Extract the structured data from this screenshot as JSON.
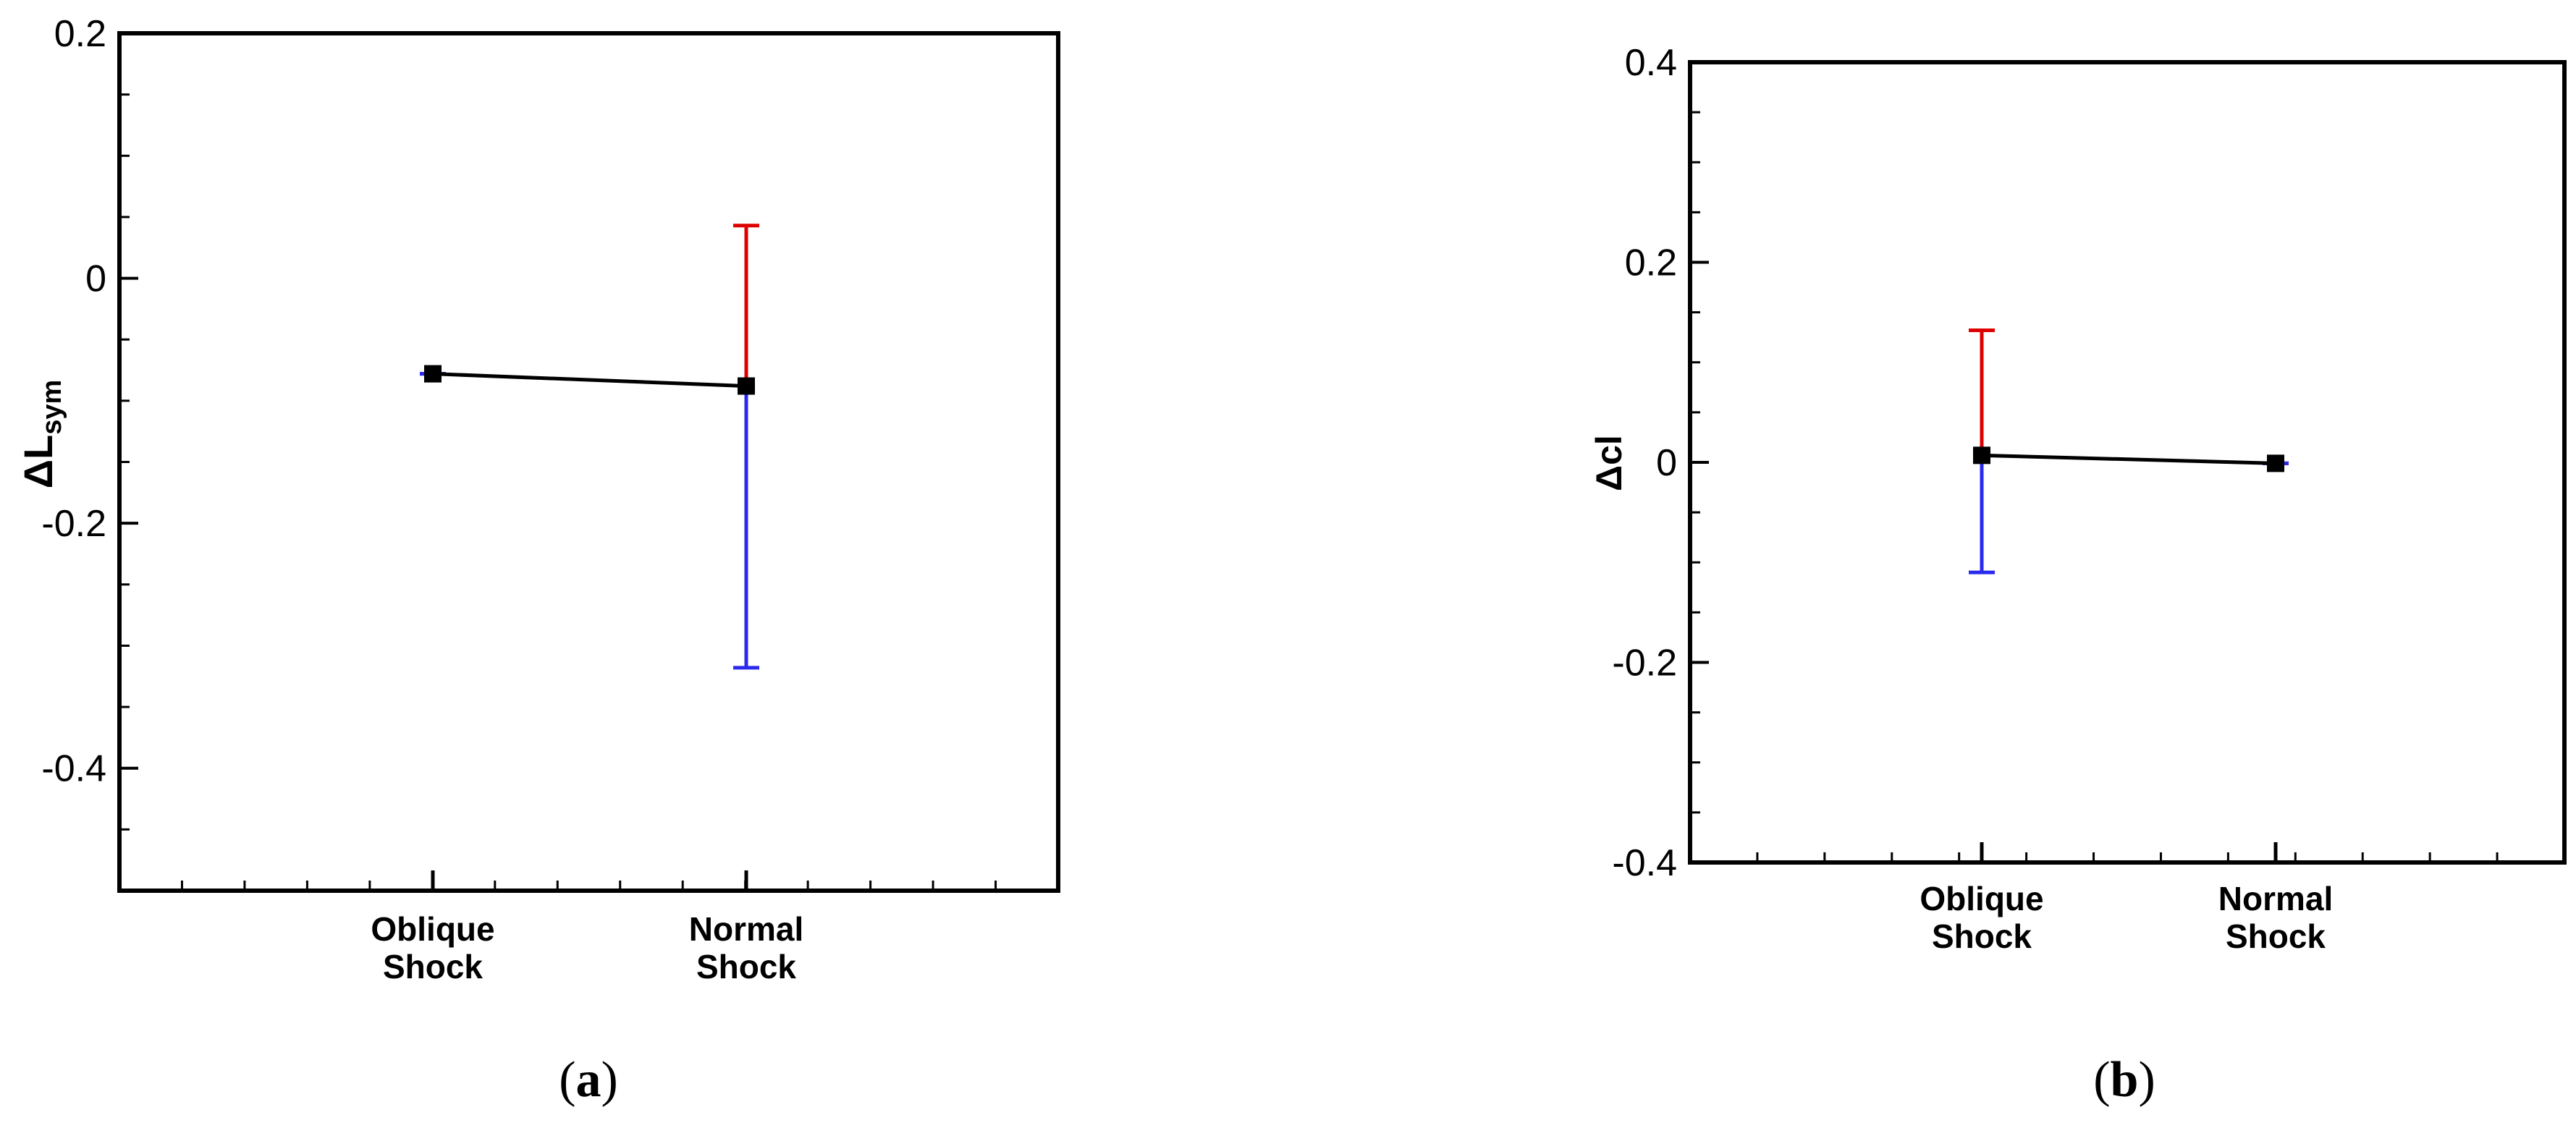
{
  "chart_data": [
    {
      "type": "scatter",
      "panel_label": "a",
      "ylabel": "ΔL",
      "ylabel_sub": "sym",
      "xlabel": "",
      "categories": [
        [
          "Oblique",
          "Shock"
        ],
        [
          "Normal",
          "Shock"
        ]
      ],
      "ylim": [
        -0.5,
        0.2
      ],
      "yticks": [
        0.2,
        0,
        -0.2,
        -0.4
      ],
      "ytick_labels": [
        "0.2",
        "0",
        "-0.2",
        "-0.4"
      ],
      "grid": false,
      "series": [
        {
          "values": [
            -0.078,
            -0.088
          ],
          "upper": [
            -0.078,
            0.043
          ],
          "lower": [
            -0.078,
            -0.318
          ],
          "line_color": "#000000",
          "upper_color": "#dd0000",
          "lower_color": "#2a2aee"
        }
      ]
    },
    {
      "type": "scatter",
      "panel_label": "b",
      "ylabel": "Δcl",
      "ylabel_sub": "",
      "xlabel": "",
      "categories": [
        [
          "Oblique",
          "Shock"
        ],
        [
          "Normal",
          "Shock"
        ]
      ],
      "ylim": [
        -0.4,
        0.4
      ],
      "yticks": [
        0.4,
        0.2,
        0,
        -0.2,
        -0.4
      ],
      "ytick_labels": [
        "0.4",
        "0.2",
        "0",
        "-0.2",
        "-0.4"
      ],
      "grid": false,
      "series": [
        {
          "values": [
            0.007,
            -0.001
          ],
          "upper": [
            0.132,
            -0.001
          ],
          "lower": [
            -0.11,
            -0.001
          ],
          "line_color": "#000000",
          "upper_color": "#dd0000",
          "lower_color": "#2a2aee"
        }
      ]
    }
  ]
}
